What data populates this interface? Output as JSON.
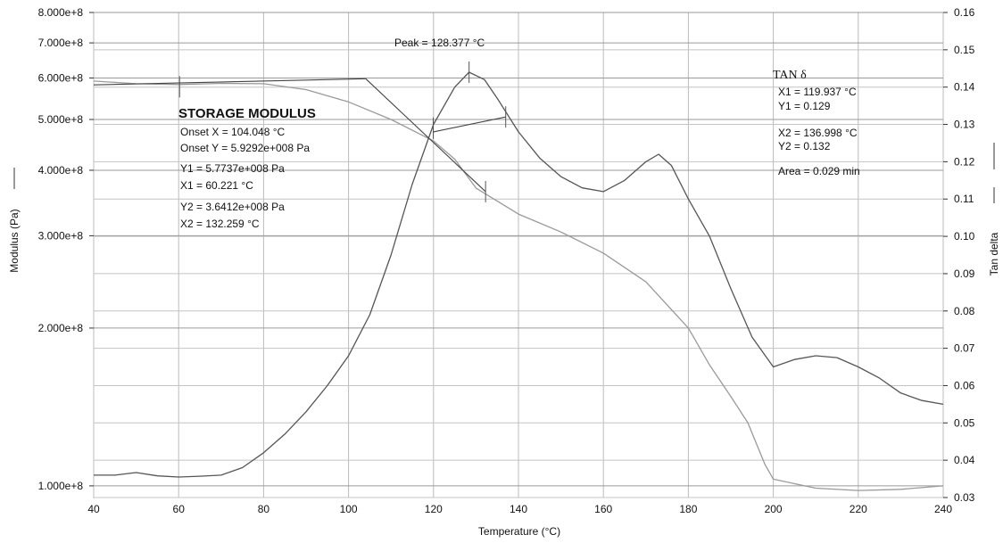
{
  "chart_data": {
    "type": "line",
    "xlabel": "Temperature (°C)",
    "ylabel_left": "Modulus (Pa)",
    "ylabel_right": "Tan delta",
    "x_ticks": [
      40,
      60,
      80,
      100,
      120,
      140,
      160,
      180,
      200,
      220,
      240
    ],
    "xlim": [
      40,
      240
    ],
    "y_left_scale": "log",
    "y_left_lim": [
      95000000,
      800000000
    ],
    "y_left_ticks": [
      {
        "value": 100000000,
        "label": "1.000e+8"
      },
      {
        "value": 200000000,
        "label": "2.000e+8"
      },
      {
        "value": 300000000,
        "label": "3.000e+8"
      },
      {
        "value": 400000000,
        "label": "4.000e+8"
      },
      {
        "value": 500000000,
        "label": "5.000e+8"
      },
      {
        "value": 600000000,
        "label": "6.000e+8"
      },
      {
        "value": 700000000,
        "label": "7.000e+8"
      },
      {
        "value": 800000000,
        "label": "8.000e+8"
      }
    ],
    "y_right_lim": [
      0.03,
      0.16
    ],
    "y_right_ticks": [
      {
        "value": 0.03,
        "label": "0.03"
      },
      {
        "value": 0.04,
        "label": "0.04"
      },
      {
        "value": 0.05,
        "label": "0.05"
      },
      {
        "value": 0.06,
        "label": "0.06"
      },
      {
        "value": 0.07,
        "label": "0.07"
      },
      {
        "value": 0.08,
        "label": "0.08"
      },
      {
        "value": 0.09,
        "label": "0.09"
      },
      {
        "value": 0.1,
        "label": "0.10"
      },
      {
        "value": 0.11,
        "label": "0.11"
      },
      {
        "value": 0.12,
        "label": "0.12"
      },
      {
        "value": 0.13,
        "label": "0.13"
      },
      {
        "value": 0.14,
        "label": "0.14"
      },
      {
        "value": 0.15,
        "label": "0.15"
      },
      {
        "value": 0.16,
        "label": "0.16"
      }
    ],
    "grid": true,
    "series": [
      {
        "axis": "left",
        "color": "#9a9a9a",
        "x": [
          40,
          50,
          60,
          70,
          80,
          90,
          100,
          110,
          120,
          125,
          130,
          140,
          150,
          160,
          170,
          180,
          185,
          190,
          194,
          198,
          200,
          210,
          220,
          230,
          240
        ],
        "y": [
          592000000,
          585000000,
          583000000,
          586000000,
          585000000,
          570000000,
          540000000,
          500000000,
          455000000,
          420000000,
          370000000,
          330000000,
          305000000,
          278000000,
          245000000,
          200000000,
          170000000,
          148000000,
          132000000,
          110000000,
          103000000,
          99000000,
          98000000,
          98500000,
          100000000
        ]
      },
      {
        "axis": "right",
        "color": "#555555",
        "x": [
          40,
          45,
          50,
          55,
          60,
          65,
          70,
          75,
          80,
          85,
          90,
          95,
          100,
          105,
          110,
          115,
          120,
          125,
          128.377,
          132,
          135,
          140,
          145,
          150,
          155,
          160,
          165,
          170,
          173,
          176,
          180,
          185,
          190,
          195,
          200,
          205,
          210,
          215,
          220,
          225,
          230,
          235,
          240
        ],
        "y": [
          0.036,
          0.036,
          0.0367,
          0.0358,
          0.0355,
          0.0357,
          0.036,
          0.038,
          0.042,
          0.047,
          0.053,
          0.06,
          0.068,
          0.079,
          0.095,
          0.114,
          0.13,
          0.14,
          0.144,
          0.142,
          0.137,
          0.128,
          0.121,
          0.116,
          0.113,
          0.112,
          0.115,
          0.12,
          0.122,
          0.119,
          0.11,
          0.1,
          0.086,
          0.073,
          0.065,
          0.067,
          0.068,
          0.0675,
          0.065,
          0.062,
          0.058,
          0.056,
          0.055
        ]
      }
    ],
    "onset_lines": [
      {
        "axis": "left",
        "x": [
          40,
          104.048
        ],
        "y": [
          582000000,
          598000000
        ]
      },
      {
        "axis": "left",
        "x": [
          104.048,
          132.259
        ],
        "y": [
          598000000,
          364120000
        ]
      },
      {
        "axis": "right",
        "x": [
          120,
          137
        ],
        "y": [
          0.128,
          0.132
        ]
      }
    ],
    "markers": [
      {
        "axis": "left",
        "x": 60.221,
        "y": 577370000
      },
      {
        "axis": "left",
        "x": 132.259,
        "y": 364120000
      },
      {
        "axis": "right",
        "x": 128.377,
        "y": 0.144
      },
      {
        "axis": "right",
        "x": 119.937,
        "y": 0.129
      },
      {
        "axis": "right",
        "x": 136.998,
        "y": 0.132
      }
    ],
    "annotations": {
      "peak": "Peak = 128.377 °C",
      "storage_title": "STORAGE MODULUS",
      "storage_lines": [
        "Onset X = 104.048 °C",
        "Onset Y = 5.9292e+008 Pa",
        "Y1 = 5.7737e+008 Pa",
        "X1 = 60.221 °C",
        "Y2 = 3.6412e+008 Pa",
        "X2 = 132.259 °C"
      ],
      "tan_title": "TAN δ",
      "tan_lines": [
        "X1 = 119.937 °C",
        "Y1 = 0.129",
        "X2 = 136.998 °C",
        "Y2 = 0.132",
        "Area = 0.029  min"
      ]
    }
  }
}
